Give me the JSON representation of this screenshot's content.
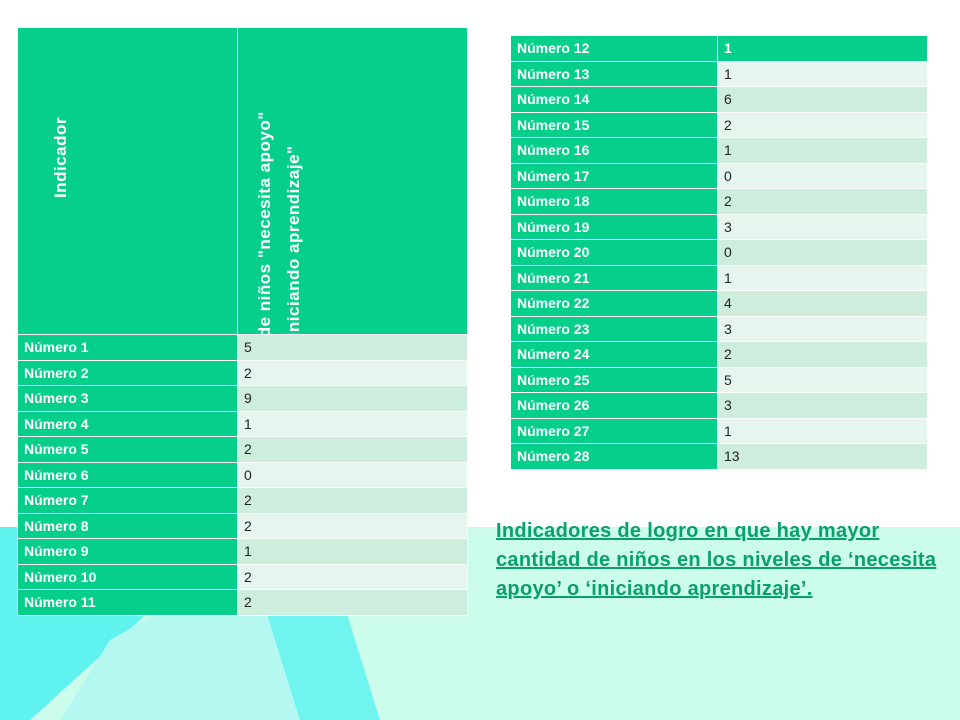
{
  "left_table": {
    "header_col1": "Indicador",
    "header_col2": "Nº de niños \"necesita apoyo\" o \"iniciando aprendizaje\"",
    "rows": [
      {
        "label": "Número 1",
        "value": "5"
      },
      {
        "label": "Número 2",
        "value": "2"
      },
      {
        "label": "Número 3",
        "value": "9"
      },
      {
        "label": "Número 4",
        "value": "1"
      },
      {
        "label": "Número 5",
        "value": "2"
      },
      {
        "label": "Número 6",
        "value": "0"
      },
      {
        "label": "Número 7",
        "value": "2"
      },
      {
        "label": "Número 8",
        "value": "2"
      },
      {
        "label": "Número 9",
        "value": "1"
      },
      {
        "label": "Número 10",
        "value": "2"
      },
      {
        "label": "Número 11",
        "value": "2"
      }
    ]
  },
  "right_table": {
    "rows": [
      {
        "label": "Número 12",
        "value": "1"
      },
      {
        "label": "Número 13",
        "value": "1"
      },
      {
        "label": "Número 14",
        "value": "6"
      },
      {
        "label": "Número 15",
        "value": "2"
      },
      {
        "label": "Número 16",
        "value": "1"
      },
      {
        "label": "Número 17",
        "value": "0"
      },
      {
        "label": "Número 18",
        "value": "2"
      },
      {
        "label": "Número 19",
        "value": "3"
      },
      {
        "label": "Número 20",
        "value": "0"
      },
      {
        "label": "Número 21",
        "value": "1"
      },
      {
        "label": "Número 22",
        "value": "4"
      },
      {
        "label": "Número 23",
        "value": "3"
      },
      {
        "label": "Número 24",
        "value": "2"
      },
      {
        "label": "Número 25",
        "value": "5"
      },
      {
        "label": "Número 26",
        "value": "3"
      },
      {
        "label": "Número 27",
        "value": "1"
      },
      {
        "label": "Número 28",
        "value": "13"
      }
    ]
  },
  "caption": "Indicadores de logro en que hay mayor cantidad de niños en los niveles de ‘necesita apoyo’ o ‘iniciando aprendizaje’.",
  "colors": {
    "header_green": "#05cf8a",
    "row_dark": "#cdeedd",
    "row_light": "#e6f6ee",
    "background_mint": "#ccfcec",
    "background_cyan": "#41f1f1",
    "caption_green": "#0aa06a"
  }
}
